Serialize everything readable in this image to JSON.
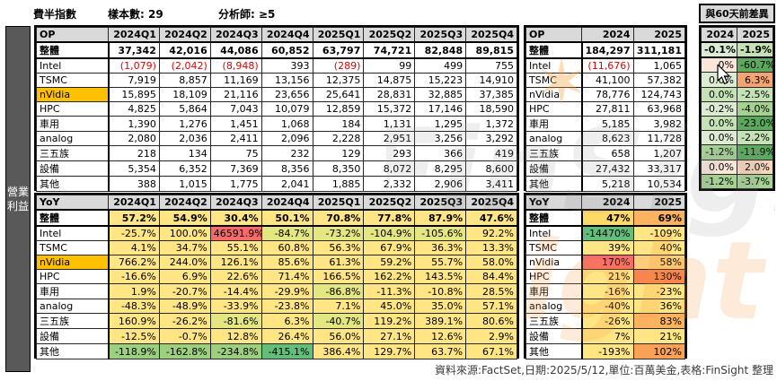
{
  "header": {
    "index_label": "費半指數",
    "sample_label": "樣本數: 29",
    "analyst_label": "分析師: ≥5",
    "diff_title": "與60天前差異"
  },
  "sidebar": {
    "label": "營業利益"
  },
  "footer": {
    "source": "資料來源:FactSet,日期:2025/5/12,單位:百萬美金,表格:FinSight 整理"
  },
  "watermark": {
    "text": "FinSight",
    "star": "✶",
    "accent": "ight"
  },
  "quarters": [
    "2024Q1",
    "2024Q2",
    "2024Q3",
    "2024Q4",
    "2025Q1",
    "2025Q2",
    "2025Q3",
    "2025Q4"
  ],
  "years": [
    "2024",
    "2025"
  ],
  "palette": {
    "w": "#FFFFFF",
    "y": "#FFE583",
    "yg": "#E4E682",
    "g": "#9CCF7E",
    "dg": "#63BE7B",
    "r": "#F8696B",
    "gold": "#FFD966",
    "o1": "#FDCD7C",
    "o2": "#FBB360",
    "o4": "#F9A156",
    "o5": "#F8854F",
    "o6": "#F5A471",
    "g1": "#DBECD2",
    "g2": "#C4E2B6",
    "g3": "#A5D293",
    "g4": "#5BA95C",
    "p1": "#FBE7DA",
    "p2": "#F8D5BD",
    "nvidia_highlight": "#FFC000",
    "header_gray": "#D9D9D9",
    "sidebar_gray": "#595959",
    "negative_red": "#E00000"
  },
  "tables": {
    "op_quarterly": {
      "corner": "OP",
      "columns": "quarters",
      "labels": true,
      "label_width": 80,
      "rows": [
        {
          "label": "整體",
          "bold": true,
          "values": [
            "37,342",
            "42,016",
            "44,086",
            "60,852",
            "63,797",
            "74,721",
            "82,848",
            "89,815"
          ]
        },
        {
          "label": "Intel",
          "values": [
            "(1,079)",
            "(2,042)",
            "(8,948)",
            "393",
            "(289)",
            "99",
            "499",
            "755"
          ]
        },
        {
          "label": "TSMC",
          "values": [
            "7,919",
            "8,857",
            "11,169",
            "13,156",
            "12,375",
            "14,875",
            "15,223",
            "14,910"
          ]
        },
        {
          "label": "nVidia",
          "hl": true,
          "values": [
            "15,895",
            "18,109",
            "21,116",
            "23,656",
            "25,641",
            "28,831",
            "32,885",
            "37,385"
          ]
        },
        {
          "label": "HPC",
          "values": [
            "4,825",
            "5,864",
            "7,043",
            "10,079",
            "12,859",
            "15,372",
            "17,146",
            "18,590"
          ]
        },
        {
          "label": "車用",
          "values": [
            "1,390",
            "1,276",
            "1,451",
            "1,068",
            "184",
            "1,131",
            "1,295",
            "1,372"
          ]
        },
        {
          "label": "analog",
          "values": [
            "2,080",
            "2,036",
            "2,411",
            "2,096",
            "2,228",
            "2,951",
            "3,256",
            "3,292"
          ]
        },
        {
          "label": "三五族",
          "values": [
            "218",
            "134",
            "75",
            "232",
            "129",
            "293",
            "366",
            "419"
          ]
        },
        {
          "label": "設備",
          "values": [
            "5,354",
            "6,352",
            "7,369",
            "8,356",
            "8,350",
            "8,072",
            "8,295",
            "8,600"
          ]
        },
        {
          "label": "其他",
          "values": [
            "388",
            "1,015",
            "1,775",
            "2,041",
            "1,885",
            "2,332",
            "2,906",
            "3,411"
          ]
        }
      ]
    },
    "op_annual": {
      "corner": "OP",
      "columns": "years",
      "labels": true,
      "label_width": 62,
      "rows": [
        {
          "label": "整體",
          "bold": true,
          "values": [
            "184,297",
            "311,181"
          ]
        },
        {
          "label": "Intel",
          "values": [
            "(11,676)",
            "1,065"
          ]
        },
        {
          "label": "TSMC",
          "values": [
            "41,100",
            "57,382"
          ]
        },
        {
          "label": "nVidia",
          "values": [
            "78,776",
            "124,743"
          ]
        },
        {
          "label": "HPC",
          "values": [
            "27,811",
            "63,968"
          ]
        },
        {
          "label": "車用",
          "values": [
            "5,185",
            "3,982"
          ]
        },
        {
          "label": "analog",
          "values": [
            "8,623",
            "11,728"
          ]
        },
        {
          "label": "三五族",
          "values": [
            "658",
            "1,207"
          ]
        },
        {
          "label": "設備",
          "values": [
            "27,432",
            "33,317"
          ]
        },
        {
          "label": "其他",
          "values": [
            "5,218",
            "10,534"
          ]
        }
      ]
    },
    "op_diff": {
      "columns": "years",
      "labels": false,
      "rows": [
        {
          "bold": true,
          "values": [
            "-0.1%",
            "-1.9%"
          ],
          "colors": [
            "g1",
            "g2"
          ]
        },
        {
          "values": [
            "0%",
            "-60.7%"
          ],
          "colors": [
            "p1",
            "g4"
          ]
        },
        {
          "values": [
            "0.0%",
            "6.3%"
          ],
          "colors": [
            "g1",
            "o6"
          ]
        },
        {
          "values": [
            "0.0%",
            "-2.5%"
          ],
          "colors": [
            "g2",
            "g2"
          ]
        },
        {
          "values": [
            "-0.2%",
            "-4.0%"
          ],
          "colors": [
            "g1",
            "g3"
          ]
        },
        {
          "values": [
            "0.0%",
            "-23.0%"
          ],
          "colors": [
            "g2",
            "g4"
          ]
        },
        {
          "values": [
            "0.0%",
            "-2.2%"
          ],
          "colors": [
            "g1",
            "g2"
          ]
        },
        {
          "values": [
            "-1.2%",
            "-11.9%"
          ],
          "colors": [
            "g3",
            "g4"
          ]
        },
        {
          "values": [
            "0.0%",
            "2.0%"
          ],
          "colors": [
            "p1",
            "p2"
          ]
        },
        {
          "values": [
            "-1.2%",
            "-3.7%"
          ],
          "colors": [
            "g3",
            "g3"
          ]
        }
      ]
    },
    "yoy_quarterly": {
      "corner": "YoY",
      "columns": "quarters",
      "labels": true,
      "label_width": 80,
      "default_color": "y",
      "rows": [
        {
          "label": "整體",
          "bold": true,
          "values": [
            "57.2%",
            "54.9%",
            "30.4%",
            "50.1%",
            "70.8%",
            "77.8%",
            "87.9%",
            "47.6%"
          ]
        },
        {
          "label": "Intel",
          "values": [
            "-25.7%",
            "100.0%",
            "46591.9%",
            "-84.7%",
            "-73.2%",
            "-104.9%",
            "-105.6%",
            "92.2%"
          ],
          "colors": [
            "y",
            "y",
            "r",
            "yg",
            "yg",
            "yg",
            "yg",
            "y"
          ]
        },
        {
          "label": "TSMC",
          "values": [
            "4.1%",
            "34.7%",
            "55.1%",
            "60.8%",
            "56.3%",
            "67.9%",
            "36.3%",
            "13.3%"
          ]
        },
        {
          "label": "nVidia",
          "hl": true,
          "values": [
            "766.2%",
            "244.0%",
            "126.1%",
            "85.6%",
            "61.3%",
            "59.2%",
            "55.7%",
            "58.0%"
          ]
        },
        {
          "label": "HPC",
          "values": [
            "-16.6%",
            "6.9%",
            "22.6%",
            "71.4%",
            "166.5%",
            "162.2%",
            "143.5%",
            "84.4%"
          ]
        },
        {
          "label": "車用",
          "values": [
            "1.9%",
            "-20.7%",
            "-14.4%",
            "-29.9%",
            "-86.8%",
            "-11.3%",
            "-10.8%",
            "28.5%"
          ],
          "colors": [
            "y",
            "y",
            "y",
            "y",
            "yg",
            "y",
            "y",
            "y"
          ]
        },
        {
          "label": "analog",
          "values": [
            "-48.3%",
            "-48.9%",
            "-33.9%",
            "-23.8%",
            "7.1%",
            "45.0%",
            "35.0%",
            "57.1%"
          ]
        },
        {
          "label": "三五族",
          "values": [
            "160.9%",
            "-26.2%",
            "-81.6%",
            "6.3%",
            "-40.7%",
            "119.2%",
            "389.1%",
            "80.6%"
          ],
          "colors": [
            "y",
            "y",
            "yg",
            "y",
            "yg",
            "y",
            "y",
            "y"
          ]
        },
        {
          "label": "設備",
          "values": [
            "-12.5%",
            "-0.7%",
            "12.8%",
            "26.4%",
            "56.0%",
            "27.1%",
            "12.6%",
            "2.9%"
          ]
        },
        {
          "label": "其他",
          "values": [
            "-118.9%",
            "-162.8%",
            "-234.8%",
            "-415.1%",
            "386.4%",
            "129.7%",
            "63.7%",
            "67.1%"
          ],
          "colors": [
            "g",
            "g",
            "g",
            "dg",
            "y",
            "y",
            "y",
            "y"
          ]
        }
      ]
    },
    "yoy_annual": {
      "corner": "YoY",
      "columns": "years",
      "labels": true,
      "label_width": 62,
      "default_color": "y",
      "rows": [
        {
          "label": "整體",
          "bold": true,
          "values": [
            "47%",
            "69%"
          ],
          "colors": [
            "gold",
            "o2"
          ]
        },
        {
          "label": "Intel",
          "values": [
            "-14470%",
            "-109%"
          ],
          "colors": [
            "dg",
            "y"
          ]
        },
        {
          "label": "TSMC",
          "values": [
            "39%",
            "40%"
          ]
        },
        {
          "label": "nVidia",
          "values": [
            "170%",
            "58%"
          ],
          "colors": [
            "r",
            "o1"
          ]
        },
        {
          "label": "HPC",
          "values": [
            "21%",
            "130%"
          ],
          "colors": [
            "y",
            "o5"
          ]
        },
        {
          "label": "車用",
          "values": [
            "-16%",
            "-23%"
          ]
        },
        {
          "label": "analog",
          "values": [
            "-40%",
            "36%"
          ]
        },
        {
          "label": "三五族",
          "values": [
            "-26%",
            "83%"
          ],
          "colors": [
            "y",
            "o2"
          ]
        },
        {
          "label": "設備",
          "values": [
            "7%",
            "21%"
          ]
        },
        {
          "label": "其他",
          "values": [
            "-193%",
            "102%"
          ],
          "colors": [
            "y",
            "o4"
          ]
        }
      ]
    }
  }
}
